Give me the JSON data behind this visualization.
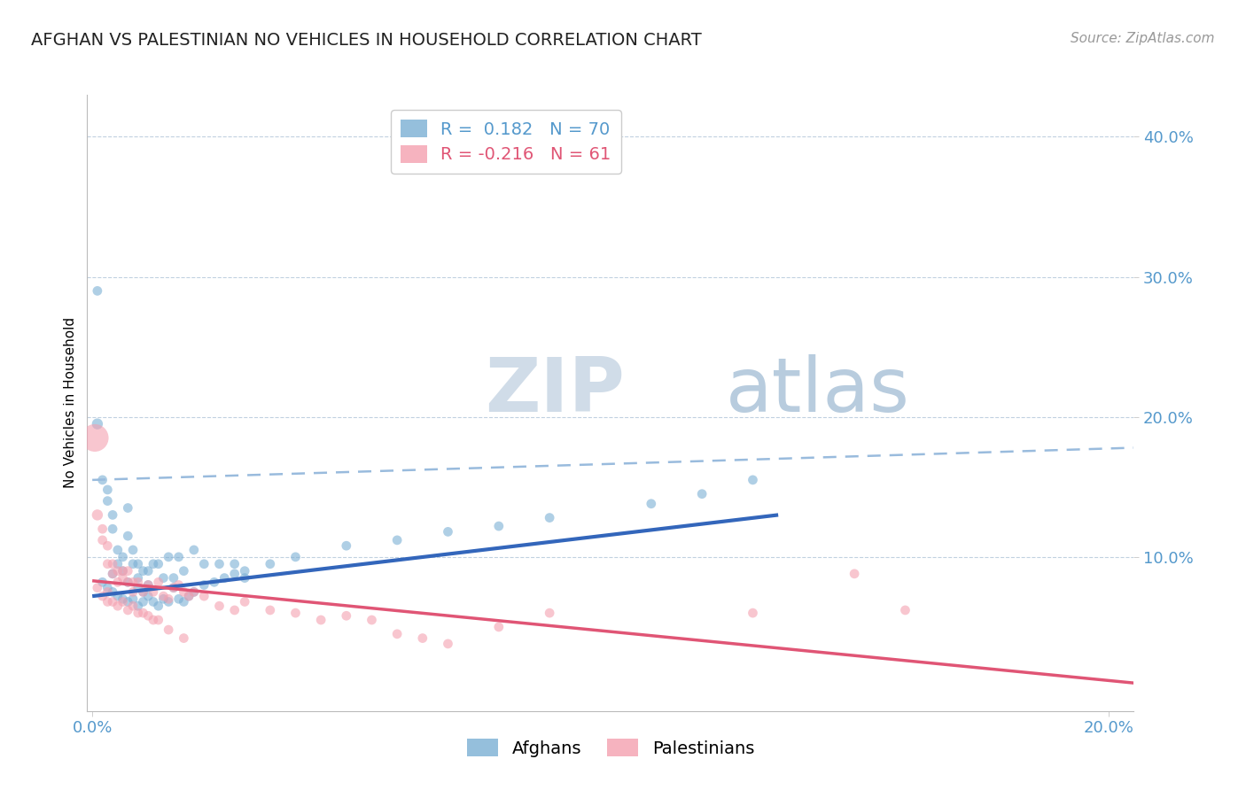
{
  "title": "AFGHAN VS PALESTINIAN NO VEHICLES IN HOUSEHOLD CORRELATION CHART",
  "source": "Source: ZipAtlas.com",
  "ylabel": "No Vehicles in Household",
  "xlim": [
    -0.001,
    0.205
  ],
  "ylim": [
    -0.01,
    0.43
  ],
  "xtick_values": [
    0.0,
    0.2
  ],
  "xtick_labels": [
    "0.0%",
    "20.0%"
  ],
  "ytick_values": [
    0.1,
    0.2,
    0.3,
    0.4
  ],
  "ytick_labels": [
    "10.0%",
    "20.0%",
    "30.0%",
    "40.0%"
  ],
  "grid_ytick_values": [
    0.1,
    0.2,
    0.3,
    0.4
  ],
  "blue_color": "#7BAFD4",
  "pink_color": "#F4A0B0",
  "blue_line_color": "#3366BB",
  "pink_line_color": "#E05575",
  "dashed_line_color": "#99BBDD",
  "watermark_zip_color": "#C8D8EC",
  "watermark_atlas_color": "#C8D8EC",
  "tick_color": "#5599CC",
  "legend_R_blue": " 0.182",
  "legend_N_blue": "70",
  "legend_R_pink": "-0.216",
  "legend_N_pink": "61",
  "blue_scatter_x": [
    0.001,
    0.002,
    0.003,
    0.003,
    0.004,
    0.004,
    0.005,
    0.005,
    0.006,
    0.006,
    0.007,
    0.007,
    0.008,
    0.008,
    0.009,
    0.009,
    0.01,
    0.01,
    0.011,
    0.011,
    0.012,
    0.013,
    0.014,
    0.015,
    0.016,
    0.017,
    0.018,
    0.02,
    0.022,
    0.025,
    0.028,
    0.03,
    0.001,
    0.002,
    0.003,
    0.004,
    0.004,
    0.005,
    0.006,
    0.007,
    0.007,
    0.008,
    0.009,
    0.009,
    0.01,
    0.011,
    0.012,
    0.013,
    0.014,
    0.015,
    0.016,
    0.017,
    0.018,
    0.019,
    0.02,
    0.022,
    0.024,
    0.026,
    0.028,
    0.03,
    0.035,
    0.04,
    0.05,
    0.06,
    0.07,
    0.08,
    0.09,
    0.11,
    0.12,
    0.13
  ],
  "blue_scatter_y": [
    0.195,
    0.155,
    0.148,
    0.14,
    0.13,
    0.12,
    0.095,
    0.105,
    0.1,
    0.09,
    0.135,
    0.115,
    0.105,
    0.095,
    0.095,
    0.085,
    0.09,
    0.075,
    0.09,
    0.08,
    0.095,
    0.095,
    0.085,
    0.1,
    0.085,
    0.1,
    0.09,
    0.105,
    0.095,
    0.095,
    0.095,
    0.085,
    0.29,
    0.082,
    0.078,
    0.075,
    0.088,
    0.072,
    0.07,
    0.068,
    0.082,
    0.07,
    0.065,
    0.078,
    0.068,
    0.072,
    0.068,
    0.065,
    0.07,
    0.068,
    0.078,
    0.07,
    0.068,
    0.072,
    0.075,
    0.08,
    0.082,
    0.085,
    0.088,
    0.09,
    0.095,
    0.1,
    0.108,
    0.112,
    0.118,
    0.122,
    0.128,
    0.138,
    0.145,
    0.155
  ],
  "blue_scatter_size": [
    80,
    60,
    60,
    60,
    60,
    60,
    60,
    60,
    60,
    60,
    60,
    60,
    60,
    60,
    60,
    60,
    60,
    60,
    60,
    60,
    60,
    60,
    60,
    60,
    60,
    60,
    60,
    60,
    60,
    60,
    60,
    60,
    60,
    60,
    60,
    60,
    60,
    60,
    60,
    60,
    60,
    60,
    60,
    60,
    60,
    60,
    60,
    60,
    60,
    60,
    60,
    60,
    60,
    60,
    60,
    60,
    60,
    60,
    60,
    60,
    60,
    60,
    60,
    60,
    60,
    60,
    60,
    60,
    60,
    60
  ],
  "pink_scatter_x": [
    0.0005,
    0.001,
    0.002,
    0.002,
    0.003,
    0.003,
    0.004,
    0.004,
    0.005,
    0.005,
    0.006,
    0.006,
    0.007,
    0.007,
    0.008,
    0.008,
    0.009,
    0.01,
    0.011,
    0.012,
    0.013,
    0.014,
    0.015,
    0.016,
    0.017,
    0.018,
    0.019,
    0.02,
    0.022,
    0.025,
    0.028,
    0.03,
    0.035,
    0.04,
    0.045,
    0.05,
    0.055,
    0.06,
    0.065,
    0.07,
    0.08,
    0.09,
    0.13,
    0.15,
    0.16,
    0.001,
    0.002,
    0.003,
    0.003,
    0.004,
    0.005,
    0.006,
    0.007,
    0.008,
    0.009,
    0.01,
    0.011,
    0.012,
    0.013,
    0.015,
    0.018
  ],
  "pink_scatter_y": [
    0.185,
    0.13,
    0.12,
    0.112,
    0.108,
    0.095,
    0.088,
    0.095,
    0.082,
    0.09,
    0.085,
    0.09,
    0.082,
    0.09,
    0.075,
    0.082,
    0.082,
    0.075,
    0.08,
    0.075,
    0.082,
    0.072,
    0.07,
    0.078,
    0.08,
    0.075,
    0.072,
    0.075,
    0.072,
    0.065,
    0.062,
    0.068,
    0.062,
    0.06,
    0.055,
    0.058,
    0.055,
    0.045,
    0.042,
    0.038,
    0.05,
    0.06,
    0.06,
    0.088,
    0.062,
    0.078,
    0.072,
    0.068,
    0.075,
    0.068,
    0.065,
    0.068,
    0.062,
    0.065,
    0.06,
    0.06,
    0.058,
    0.055,
    0.055,
    0.048,
    0.042
  ],
  "pink_scatter_size": [
    500,
    80,
    60,
    60,
    60,
    60,
    60,
    60,
    60,
    60,
    60,
    60,
    60,
    60,
    60,
    60,
    60,
    60,
    60,
    60,
    60,
    60,
    60,
    60,
    60,
    60,
    60,
    60,
    60,
    60,
    60,
    60,
    60,
    60,
    60,
    60,
    60,
    60,
    60,
    60,
    60,
    60,
    60,
    60,
    60,
    60,
    60,
    60,
    60,
    60,
    60,
    60,
    60,
    60,
    60,
    60,
    60,
    60,
    60,
    60,
    60
  ],
  "blue_trend_x": [
    0.0,
    0.135
  ],
  "blue_trend_y": [
    0.072,
    0.13
  ],
  "pink_trend_x": [
    0.0,
    0.205
  ],
  "pink_trend_y": [
    0.083,
    0.01
  ],
  "dashed_trend_x": [
    0.0,
    0.205
  ],
  "dashed_trend_y": [
    0.155,
    0.178
  ],
  "title_fontsize": 14,
  "source_fontsize": 11,
  "ylabel_fontsize": 11,
  "tick_fontsize": 13,
  "legend_fontsize": 14
}
